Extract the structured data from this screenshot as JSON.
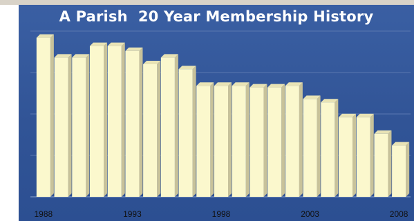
{
  "chart_data": {
    "type": "bar",
    "title": "A Parish  20 Year Membership History",
    "xlabel": "",
    "ylabel": "",
    "categories": [
      "1988",
      "1989",
      "1990",
      "1991",
      "1992",
      "1993",
      "1994",
      "1995",
      "1996",
      "1997",
      "1998",
      "1999",
      "2000",
      "2001",
      "2002",
      "2003",
      "2004",
      "2005",
      "2006",
      "2007",
      "2008"
    ],
    "tick_labels": [
      "1988",
      "1993",
      "1998",
      "2003",
      "2008"
    ],
    "values": [
      96,
      84,
      84,
      91,
      91,
      88,
      80,
      84,
      77,
      67,
      67,
      67,
      66,
      66,
      67,
      59,
      57,
      48,
      48,
      38,
      31
    ],
    "ylim": [
      0,
      100
    ],
    "grid": true,
    "legend": "none",
    "colors": {
      "background": "#35589a",
      "bar_front": "#fbf8cd",
      "bar_side": "#c8c29a",
      "bar_top": "#e8e3b5",
      "gridline": "#5a78b0",
      "title": "#ffffff",
      "tick_label": "#111111"
    }
  }
}
